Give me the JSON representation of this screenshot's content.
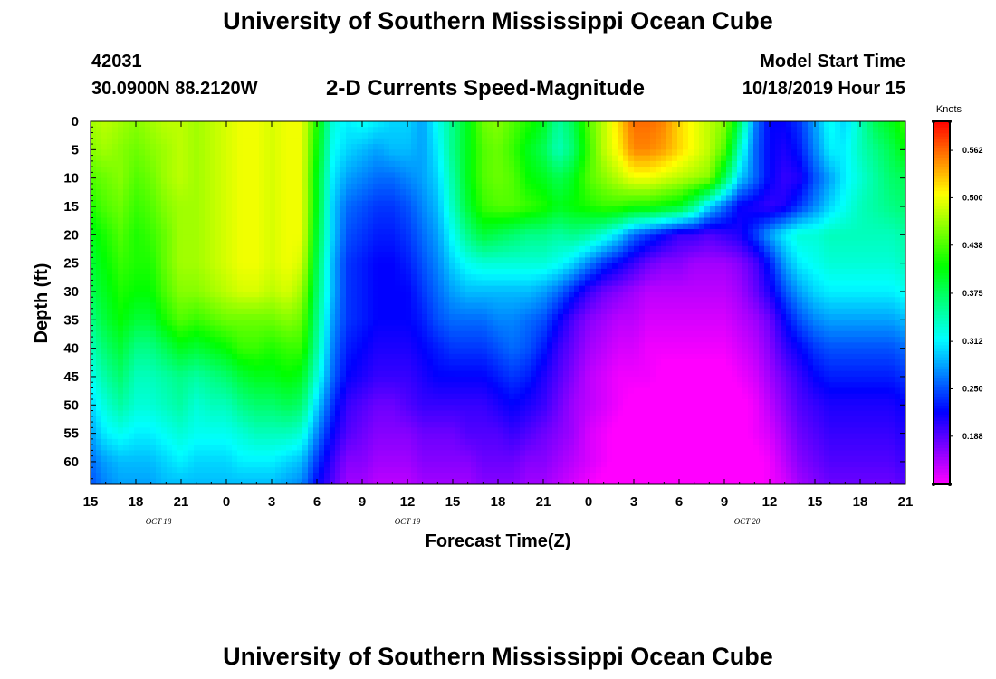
{
  "header": {
    "title": "University of Southern Mississippi Ocean Cube",
    "footer_title": "University of Southern Mississippi Ocean Cube",
    "station_id": "42031",
    "coords": "30.0900N 88.2120W",
    "center_title": "2-D Currents Speed-Magnitude",
    "model_start_label": "Model Start Time",
    "model_start_value": "10/18/2019 Hour 15"
  },
  "chart_data": {
    "type": "heatmap",
    "title": "2-D Currents Speed-Magnitude",
    "xlabel": "Forecast Time(Z)",
    "ylabel": "Depth (ft)",
    "x_ticks": [
      "15",
      "18",
      "21",
      "0",
      "3",
      "6",
      "9",
      "12",
      "15",
      "18",
      "21",
      "0",
      "3",
      "6",
      "9",
      "12",
      "15",
      "18",
      "21"
    ],
    "x_range_hours": [
      0,
      54
    ],
    "date_labels": [
      {
        "text": "OCT 18",
        "hour": 4.5
      },
      {
        "text": "OCT 19",
        "hour": 21
      },
      {
        "text": "OCT 20",
        "hour": 43.5
      }
    ],
    "y_ticks": [
      0,
      5,
      10,
      15,
      20,
      25,
      30,
      35,
      40,
      45,
      50,
      55,
      60
    ],
    "y_range_ft": [
      0,
      64
    ],
    "colorbar": {
      "unit": "Knots",
      "min": 0.125,
      "max": 0.6,
      "ticks": [
        0.188,
        0.25,
        0.312,
        0.375,
        0.438,
        0.5,
        0.562
      ],
      "tick_labels": [
        "0.188",
        "0.250",
        "0.312",
        "0.375",
        "0.438",
        "0.500",
        "0.562"
      ]
    },
    "hours": [
      0,
      1,
      2,
      3,
      4,
      5,
      6,
      7,
      8,
      9,
      10,
      11,
      12,
      13,
      14,
      15,
      16,
      17,
      18,
      19,
      20,
      21,
      22,
      23,
      24,
      25,
      26,
      27,
      28,
      29,
      30,
      31,
      32,
      33,
      34,
      35,
      36,
      37,
      38,
      39,
      40,
      41,
      42,
      43,
      44,
      45,
      46,
      47,
      48,
      49,
      50,
      51,
      52,
      53,
      54
    ],
    "depth_rows": [
      {
        "depth_ft": 0,
        "speed": [
          0.47,
          0.48,
          0.47,
          0.46,
          0.47,
          0.48,
          0.48,
          0.47,
          0.48,
          0.49,
          0.5,
          0.5,
          0.49,
          0.5,
          0.5,
          0.42,
          0.33,
          0.31,
          0.32,
          0.31,
          0.3,
          0.3,
          0.28,
          0.32,
          0.36,
          0.4,
          0.45,
          0.46,
          0.44,
          0.42,
          0.4,
          0.35,
          0.38,
          0.44,
          0.48,
          0.52,
          0.56,
          0.56,
          0.55,
          0.52,
          0.5,
          0.48,
          0.46,
          0.38,
          0.27,
          0.22,
          0.22,
          0.24,
          0.28,
          0.32,
          0.3,
          0.34,
          0.38,
          0.4,
          0.43
        ]
      },
      {
        "depth_ft": 5,
        "speed": [
          0.46,
          0.47,
          0.46,
          0.45,
          0.46,
          0.47,
          0.48,
          0.47,
          0.48,
          0.49,
          0.5,
          0.5,
          0.49,
          0.5,
          0.5,
          0.41,
          0.32,
          0.3,
          0.29,
          0.28,
          0.29,
          0.29,
          0.28,
          0.31,
          0.36,
          0.4,
          0.44,
          0.45,
          0.43,
          0.4,
          0.38,
          0.34,
          0.37,
          0.43,
          0.48,
          0.51,
          0.55,
          0.55,
          0.54,
          0.52,
          0.5,
          0.48,
          0.44,
          0.34,
          0.26,
          0.22,
          0.21,
          0.23,
          0.27,
          0.31,
          0.31,
          0.34,
          0.36,
          0.38,
          0.41
        ]
      },
      {
        "depth_ft": 10,
        "speed": [
          0.44,
          0.45,
          0.46,
          0.44,
          0.45,
          0.47,
          0.48,
          0.47,
          0.48,
          0.49,
          0.5,
          0.5,
          0.49,
          0.5,
          0.5,
          0.4,
          0.31,
          0.28,
          0.27,
          0.26,
          0.26,
          0.27,
          0.28,
          0.3,
          0.35,
          0.4,
          0.44,
          0.45,
          0.44,
          0.41,
          0.4,
          0.38,
          0.4,
          0.44,
          0.46,
          0.48,
          0.5,
          0.5,
          0.49,
          0.48,
          0.47,
          0.46,
          0.38,
          0.3,
          0.26,
          0.22,
          0.2,
          0.21,
          0.25,
          0.28,
          0.31,
          0.33,
          0.35,
          0.37,
          0.38
        ]
      },
      {
        "depth_ft": 15,
        "speed": [
          0.42,
          0.44,
          0.45,
          0.43,
          0.44,
          0.46,
          0.47,
          0.47,
          0.48,
          0.49,
          0.5,
          0.5,
          0.49,
          0.5,
          0.5,
          0.4,
          0.3,
          0.26,
          0.25,
          0.24,
          0.24,
          0.25,
          0.27,
          0.29,
          0.34,
          0.39,
          0.43,
          0.44,
          0.44,
          0.43,
          0.42,
          0.4,
          0.41,
          0.42,
          0.43,
          0.43,
          0.42,
          0.42,
          0.41,
          0.4,
          0.36,
          0.3,
          0.26,
          0.22,
          0.21,
          0.2,
          0.21,
          0.24,
          0.27,
          0.3,
          0.32,
          0.34,
          0.35,
          0.36,
          0.37
        ]
      },
      {
        "depth_ft": 20,
        "speed": [
          0.4,
          0.42,
          0.44,
          0.42,
          0.43,
          0.45,
          0.47,
          0.47,
          0.48,
          0.49,
          0.5,
          0.5,
          0.49,
          0.5,
          0.5,
          0.39,
          0.3,
          0.25,
          0.24,
          0.23,
          0.23,
          0.24,
          0.26,
          0.28,
          0.32,
          0.36,
          0.39,
          0.38,
          0.37,
          0.36,
          0.36,
          0.35,
          0.36,
          0.35,
          0.33,
          0.3,
          0.26,
          0.24,
          0.22,
          0.2,
          0.2,
          0.19,
          0.2,
          0.21,
          0.24,
          0.28,
          0.31,
          0.33,
          0.33,
          0.34,
          0.34,
          0.34,
          0.34,
          0.34,
          0.35
        ]
      },
      {
        "depth_ft": 25,
        "speed": [
          0.39,
          0.41,
          0.43,
          0.42,
          0.42,
          0.45,
          0.47,
          0.47,
          0.48,
          0.49,
          0.5,
          0.5,
          0.49,
          0.5,
          0.49,
          0.38,
          0.29,
          0.24,
          0.23,
          0.22,
          0.22,
          0.23,
          0.25,
          0.27,
          0.3,
          0.32,
          0.33,
          0.33,
          0.33,
          0.33,
          0.33,
          0.32,
          0.3,
          0.27,
          0.24,
          0.22,
          0.2,
          0.18,
          0.17,
          0.17,
          0.16,
          0.16,
          0.16,
          0.17,
          0.19,
          0.23,
          0.28,
          0.31,
          0.32,
          0.33,
          0.33,
          0.33,
          0.33,
          0.33,
          0.34
        ]
      },
      {
        "depth_ft": 30,
        "speed": [
          0.38,
          0.4,
          0.42,
          0.41,
          0.41,
          0.44,
          0.46,
          0.46,
          0.47,
          0.48,
          0.49,
          0.49,
          0.48,
          0.49,
          0.47,
          0.37,
          0.29,
          0.24,
          0.23,
          0.22,
          0.22,
          0.22,
          0.24,
          0.26,
          0.28,
          0.29,
          0.29,
          0.29,
          0.29,
          0.29,
          0.28,
          0.26,
          0.23,
          0.2,
          0.18,
          0.17,
          0.16,
          0.15,
          0.15,
          0.15,
          0.15,
          0.15,
          0.15,
          0.16,
          0.18,
          0.21,
          0.25,
          0.28,
          0.3,
          0.31,
          0.31,
          0.31,
          0.31,
          0.31,
          0.32
        ]
      },
      {
        "depth_ft": 35,
        "speed": [
          0.36,
          0.39,
          0.41,
          0.39,
          0.39,
          0.42,
          0.44,
          0.43,
          0.44,
          0.45,
          0.45,
          0.45,
          0.45,
          0.46,
          0.45,
          0.36,
          0.28,
          0.24,
          0.23,
          0.22,
          0.22,
          0.22,
          0.23,
          0.25,
          0.26,
          0.26,
          0.26,
          0.27,
          0.27,
          0.26,
          0.25,
          0.22,
          0.19,
          0.17,
          0.16,
          0.15,
          0.15,
          0.14,
          0.14,
          0.14,
          0.14,
          0.14,
          0.14,
          0.15,
          0.16,
          0.18,
          0.22,
          0.25,
          0.27,
          0.28,
          0.28,
          0.28,
          0.28,
          0.28,
          0.29
        ]
      },
      {
        "depth_ft": 40,
        "speed": [
          0.34,
          0.37,
          0.39,
          0.36,
          0.36,
          0.38,
          0.4,
          0.39,
          0.4,
          0.41,
          0.43,
          0.43,
          0.42,
          0.43,
          0.43,
          0.35,
          0.27,
          0.23,
          0.22,
          0.21,
          0.21,
          0.21,
          0.22,
          0.23,
          0.24,
          0.24,
          0.24,
          0.25,
          0.26,
          0.25,
          0.23,
          0.2,
          0.18,
          0.16,
          0.15,
          0.14,
          0.14,
          0.13,
          0.13,
          0.13,
          0.13,
          0.13,
          0.13,
          0.14,
          0.15,
          0.17,
          0.2,
          0.22,
          0.24,
          0.25,
          0.25,
          0.25,
          0.25,
          0.25,
          0.26
        ]
      },
      {
        "depth_ft": 45,
        "speed": [
          0.32,
          0.35,
          0.37,
          0.34,
          0.34,
          0.35,
          0.36,
          0.35,
          0.36,
          0.37,
          0.39,
          0.4,
          0.4,
          0.41,
          0.4,
          0.33,
          0.26,
          0.22,
          0.21,
          0.2,
          0.2,
          0.2,
          0.21,
          0.22,
          0.22,
          0.22,
          0.22,
          0.23,
          0.24,
          0.23,
          0.21,
          0.19,
          0.17,
          0.15,
          0.14,
          0.13,
          0.13,
          0.13,
          0.12,
          0.12,
          0.12,
          0.12,
          0.12,
          0.13,
          0.14,
          0.16,
          0.18,
          0.2,
          0.22,
          0.23,
          0.23,
          0.23,
          0.23,
          0.23,
          0.24
        ]
      },
      {
        "depth_ft": 50,
        "speed": [
          0.3,
          0.33,
          0.35,
          0.33,
          0.33,
          0.34,
          0.35,
          0.33,
          0.34,
          0.34,
          0.36,
          0.37,
          0.37,
          0.38,
          0.37,
          0.3,
          0.24,
          0.2,
          0.19,
          0.18,
          0.18,
          0.19,
          0.2,
          0.2,
          0.2,
          0.2,
          0.2,
          0.21,
          0.22,
          0.21,
          0.2,
          0.18,
          0.16,
          0.15,
          0.14,
          0.13,
          0.12,
          0.12,
          0.12,
          0.11,
          0.11,
          0.11,
          0.12,
          0.12,
          0.13,
          0.15,
          0.17,
          0.19,
          0.2,
          0.21,
          0.21,
          0.21,
          0.21,
          0.21,
          0.22
        ]
      },
      {
        "depth_ft": 55,
        "speed": [
          0.28,
          0.31,
          0.32,
          0.31,
          0.31,
          0.32,
          0.33,
          0.32,
          0.32,
          0.32,
          0.33,
          0.34,
          0.34,
          0.34,
          0.33,
          0.27,
          0.22,
          0.19,
          0.18,
          0.17,
          0.17,
          0.17,
          0.18,
          0.18,
          0.18,
          0.19,
          0.19,
          0.19,
          0.2,
          0.19,
          0.18,
          0.17,
          0.16,
          0.14,
          0.13,
          0.12,
          0.12,
          0.11,
          0.11,
          0.11,
          0.1,
          0.1,
          0.11,
          0.12,
          0.13,
          0.14,
          0.16,
          0.18,
          0.19,
          0.2,
          0.2,
          0.2,
          0.2,
          0.2,
          0.21
        ]
      },
      {
        "depth_ft": 60,
        "speed": [
          0.26,
          0.28,
          0.29,
          0.29,
          0.29,
          0.3,
          0.31,
          0.3,
          0.3,
          0.3,
          0.31,
          0.31,
          0.31,
          0.3,
          0.29,
          0.24,
          0.2,
          0.17,
          0.17,
          0.16,
          0.16,
          0.16,
          0.17,
          0.17,
          0.17,
          0.17,
          0.18,
          0.18,
          0.18,
          0.17,
          0.17,
          0.16,
          0.15,
          0.14,
          0.13,
          0.12,
          0.11,
          0.11,
          0.1,
          0.1,
          0.1,
          0.1,
          0.1,
          0.11,
          0.12,
          0.13,
          0.15,
          0.17,
          0.18,
          0.19,
          0.19,
          0.19,
          0.19,
          0.19,
          0.2
        ]
      },
      {
        "depth_ft": 64,
        "speed": [
          0.25,
          0.27,
          0.28,
          0.28,
          0.28,
          0.29,
          0.29,
          0.29,
          0.29,
          0.29,
          0.29,
          0.29,
          0.29,
          0.28,
          0.27,
          0.22,
          0.19,
          0.16,
          0.16,
          0.15,
          0.15,
          0.15,
          0.16,
          0.16,
          0.16,
          0.16,
          0.17,
          0.17,
          0.17,
          0.16,
          0.16,
          0.15,
          0.14,
          0.13,
          0.12,
          0.11,
          0.11,
          0.1,
          0.1,
          0.1,
          0.1,
          0.1,
          0.1,
          0.11,
          0.12,
          0.13,
          0.14,
          0.16,
          0.17,
          0.18,
          0.18,
          0.18,
          0.18,
          0.18,
          0.19
        ]
      }
    ]
  }
}
